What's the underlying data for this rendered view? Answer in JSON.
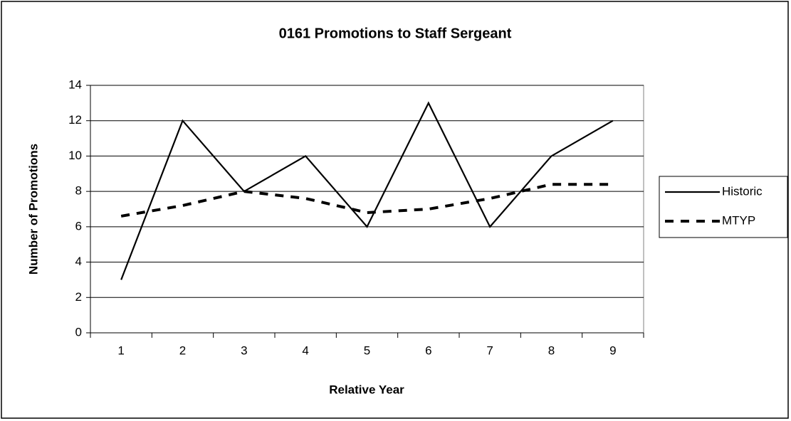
{
  "chart_data": {
    "type": "line",
    "title": "0161 Promotions to Staff Sergeant",
    "x_label": "Relative Year",
    "y_label": "Number of Promotions",
    "categories": [
      1,
      2,
      3,
      4,
      5,
      6,
      7,
      8,
      9
    ],
    "series": [
      {
        "name": "Historic",
        "color": "#000000",
        "style": "solid",
        "values": [
          3,
          12,
          8,
          10,
          6,
          13,
          6,
          10,
          12
        ]
      },
      {
        "name": "MTYP",
        "color": "#000000",
        "style": "dashed",
        "values": [
          6.6,
          7.2,
          8.0,
          7.6,
          6.8,
          7.0,
          7.6,
          8.4,
          8.4
        ]
      }
    ],
    "ylim": [
      0,
      14
    ],
    "yticks": [
      0,
      2,
      4,
      6,
      8,
      10,
      12,
      14
    ],
    "grid": true,
    "legend": "right"
  }
}
